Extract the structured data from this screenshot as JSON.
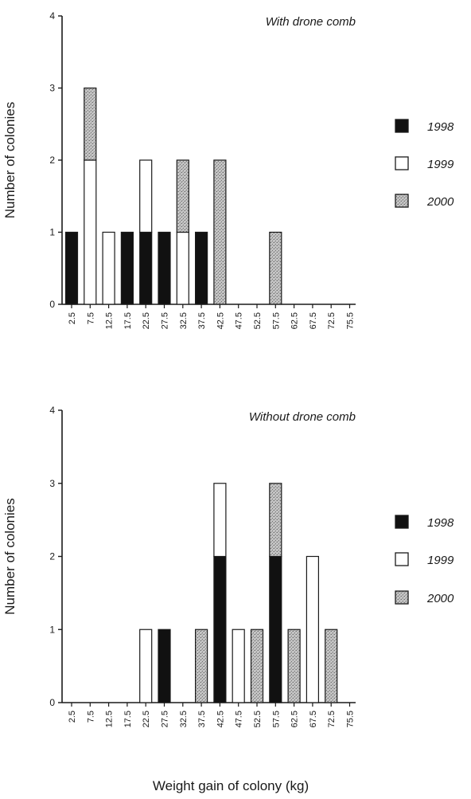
{
  "colors": {
    "1998": "#111111",
    "1999": "#ffffff",
    "2000": "#b9b9b9",
    "axis": "#1a1a1a"
  },
  "xlabel": "Weight gain of colony (kg)",
  "chart_data": [
    {
      "type": "bar",
      "stacked": true,
      "title": "With drone comb",
      "ylabel": "Number of colonies",
      "ylim": [
        0,
        4
      ],
      "yticks": [
        0,
        1,
        2,
        3,
        4
      ],
      "categories": [
        "2.5",
        "7.5",
        "12.5",
        "17.5",
        "22.5",
        "27.5",
        "32.5",
        "37.5",
        "42.5",
        "47.5",
        "52.5",
        "57.5",
        "62.5",
        "67.5",
        "72.5",
        "75.5"
      ],
      "series": [
        {
          "name": "1998",
          "values": [
            1,
            0,
            0,
            1,
            1,
            1,
            0,
            1,
            0,
            0,
            0,
            0,
            0,
            0,
            0,
            0
          ]
        },
        {
          "name": "1999",
          "values": [
            0,
            2,
            1,
            0,
            1,
            0,
            1,
            0,
            0,
            0,
            0,
            0,
            0,
            0,
            0,
            0
          ]
        },
        {
          "name": "2000",
          "values": [
            0,
            1,
            0,
            0,
            0,
            0,
            1,
            0,
            2,
            0,
            0,
            1,
            0,
            0,
            0,
            0
          ]
        }
      ],
      "legend_position": "right"
    },
    {
      "type": "bar",
      "stacked": true,
      "title": "Without drone comb",
      "ylabel": "Number of colonies",
      "ylim": [
        0,
        4
      ],
      "yticks": [
        0,
        1,
        2,
        3,
        4
      ],
      "categories": [
        "2.5",
        "7.5",
        "12.5",
        "17.5",
        "22.5",
        "27.5",
        "32.5",
        "37.5",
        "42.5",
        "47.5",
        "52.5",
        "57.5",
        "62.5",
        "67.5",
        "72.5",
        "75.5"
      ],
      "series": [
        {
          "name": "1998",
          "values": [
            0,
            0,
            0,
            0,
            0,
            1,
            0,
            0,
            2,
            0,
            0,
            2,
            0,
            0,
            0,
            0
          ]
        },
        {
          "name": "1999",
          "values": [
            0,
            0,
            0,
            0,
            1,
            0,
            0,
            0,
            1,
            1,
            0,
            0,
            0,
            2,
            0,
            0
          ]
        },
        {
          "name": "2000",
          "values": [
            0,
            0,
            0,
            0,
            0,
            0,
            0,
            1,
            0,
            0,
            1,
            1,
            1,
            0,
            1,
            0
          ]
        }
      ],
      "legend_position": "right"
    }
  ]
}
